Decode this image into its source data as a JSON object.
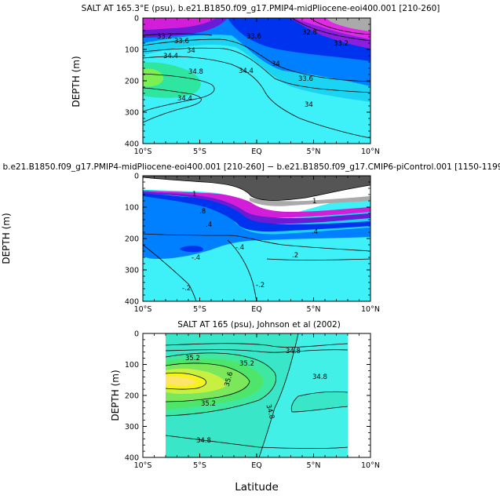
{
  "chart_data": [
    {
      "type": "heatmap",
      "title": "SALT AT 165.3°E (psu), b.e21.B1850.f09_g17.PMIP4-midPliocene-eoi400.001 [210-260]",
      "xlabel": "",
      "ylabel": "DEPTH (m)",
      "xlim": [
        -10,
        10
      ],
      "ylim": [
        400,
        0
      ],
      "x_tick_labels": [
        "10°S",
        "5°S",
        "EQ",
        "5°N",
        "10°N"
      ],
      "y_tick_labels": [
        "0",
        "100",
        "200",
        "300",
        "400"
      ],
      "contour_labels": [
        "33.2",
        "33.6",
        "34.4",
        "34",
        "34.8",
        "34.4",
        "34",
        "33.6",
        "34.4",
        "34",
        "33.6",
        "32.8",
        "33.2"
      ]
    },
    {
      "type": "heatmap",
      "title": "b.e21.B1850.f09_g17.PMIP4-midPliocene-eoi400.001 [210-260] − b.e21.B1850.f09_g17.CMIP6-piControl.001 [1150-1199]",
      "xlabel": "",
      "ylabel": "DEPTH (m)",
      "xlim": [
        -10,
        10
      ],
      "ylim": [
        400,
        0
      ],
      "x_tick_labels": [
        "10°S",
        "5°S",
        "EQ",
        "5°N",
        "10°N"
      ],
      "y_tick_labels": [
        "0",
        "100",
        "200",
        "300",
        "400"
      ],
      "contour_labels": [
        "1",
        "1",
        ".8",
        ".4",
        "-.4",
        "-.4",
        ".4",
        "-.2",
        "-.2",
        ".2"
      ]
    },
    {
      "type": "heatmap",
      "title": "SALT AT 165 (psu), Johnson et al (2002)",
      "xlabel": "Latitude",
      "ylabel": "DEPTH (m)",
      "xlim": [
        -10,
        10
      ],
      "ylim": [
        400,
        0
      ],
      "x_tick_labels": [
        "10°S",
        "5°S",
        "EQ",
        "5°N",
        "10°N"
      ],
      "y_tick_labels": [
        "0",
        "100",
        "200",
        "300",
        "400"
      ],
      "contour_labels": [
        "35.2",
        "35.2",
        "34.8",
        "34.8",
        "35.6",
        "35.2",
        "34.8",
        "34.8"
      ]
    }
  ]
}
